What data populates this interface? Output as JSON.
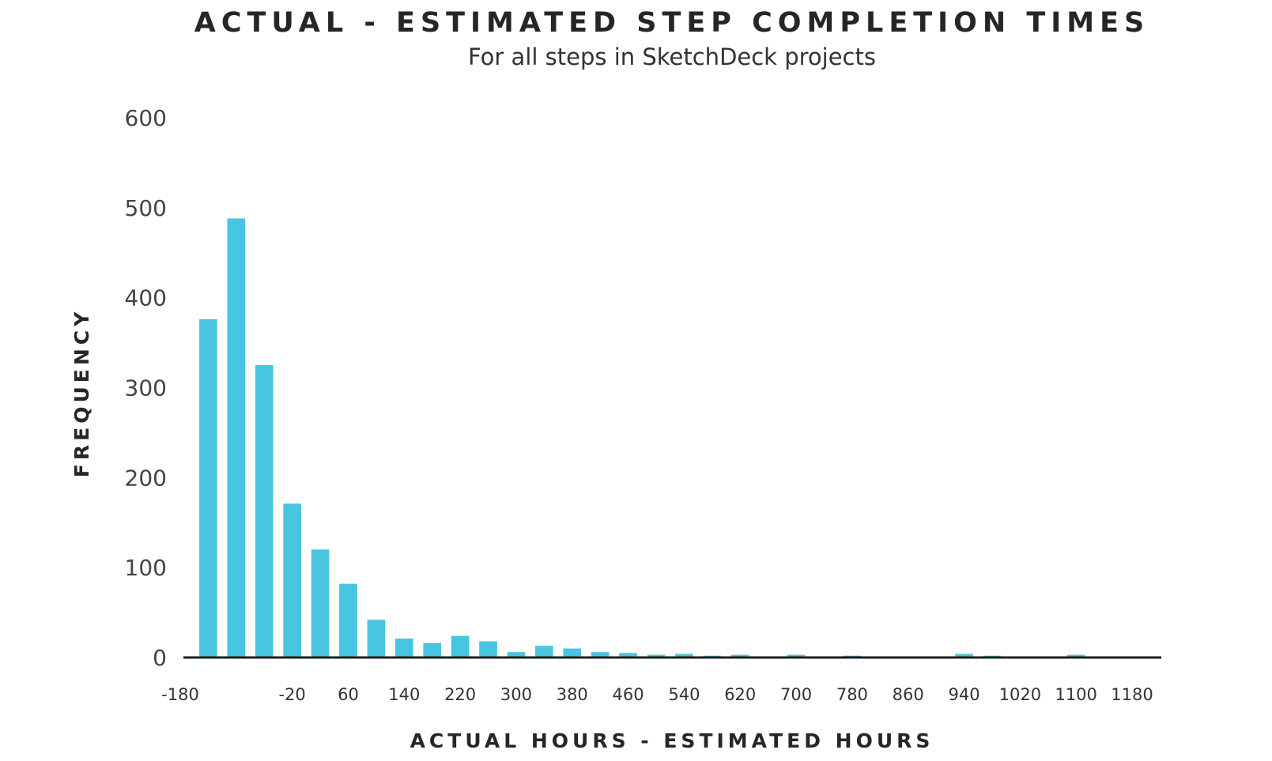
{
  "chart_data": {
    "type": "bar",
    "title": "ACTUAL - ESTIMATED STEP COMPLETION TIMES",
    "subtitle": "For all steps in SketchDeck projects",
    "xlabel": "ACTUAL HOURS - ESTIMATED HOURS",
    "ylabel": "FREQUENCY",
    "ylim": [
      0,
      600
    ],
    "yticks": [
      "0",
      "100",
      "200",
      "300",
      "400",
      "500",
      "600"
    ],
    "xticks": [
      "-180",
      "-20",
      "60",
      "140",
      "220",
      "300",
      "380",
      "460",
      "540",
      "620",
      "700",
      "780",
      "860",
      "940",
      "1020",
      "1100",
      "1180"
    ],
    "color": "#48c5e0",
    "bin_width": 40,
    "bins": [
      -140,
      -100,
      -60,
      -20,
      20,
      60,
      100,
      140,
      180,
      220,
      260,
      300,
      340,
      380,
      420,
      460,
      500,
      540,
      580,
      620,
      660,
      700,
      740,
      780,
      820,
      860,
      900,
      940,
      980,
      1020,
      1060,
      1100,
      1140,
      1180
    ],
    "values": [
      376,
      488,
      325,
      171,
      120,
      82,
      42,
      21,
      16,
      24,
      18,
      6,
      13,
      10,
      6,
      5,
      3,
      4,
      2,
      3,
      1,
      3,
      1,
      2,
      1,
      1,
      1,
      4,
      2,
      1,
      1,
      3,
      0,
      0
    ],
    "grid": false,
    "legend": "none"
  }
}
